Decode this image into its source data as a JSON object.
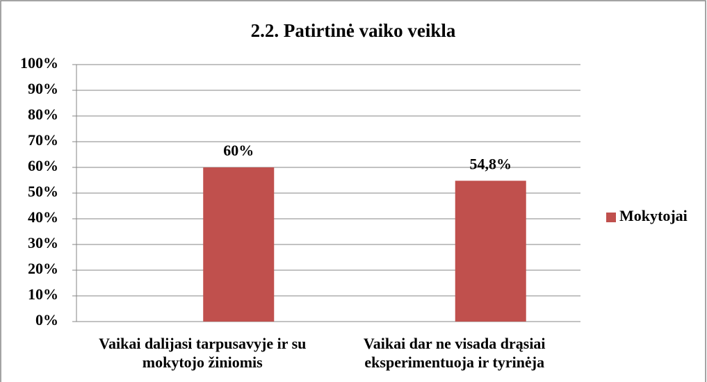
{
  "chart_data": {
    "type": "bar",
    "title": "2.2. Patirtinė vaiko veikla",
    "categories": [
      "Vaikai dalijasi tarpusavyje ir su mokytojo žiniomis",
      "Vaikai dar ne visada drąsiai eksperimentuoja ir tyrinėja"
    ],
    "series": [
      {
        "name": "Mokytojai",
        "color": "#c0504d",
        "values": [
          60,
          54.8
        ],
        "value_labels": [
          "60%",
          "54,8%"
        ]
      }
    ],
    "ylim": [
      0,
      100
    ],
    "yticks": [
      {
        "value": 0,
        "label": "0%"
      },
      {
        "value": 10,
        "label": "10%"
      },
      {
        "value": 20,
        "label": "20%"
      },
      {
        "value": 30,
        "label": "30%"
      },
      {
        "value": 40,
        "label": "40%"
      },
      {
        "value": 50,
        "label": "50%"
      },
      {
        "value": 60,
        "label": "60%"
      },
      {
        "value": 70,
        "label": "70%"
      },
      {
        "value": 80,
        "label": "80%"
      },
      {
        "value": 90,
        "label": "90%"
      },
      {
        "value": 100,
        "label": "100%"
      }
    ],
    "grid": true,
    "legend": "right"
  }
}
